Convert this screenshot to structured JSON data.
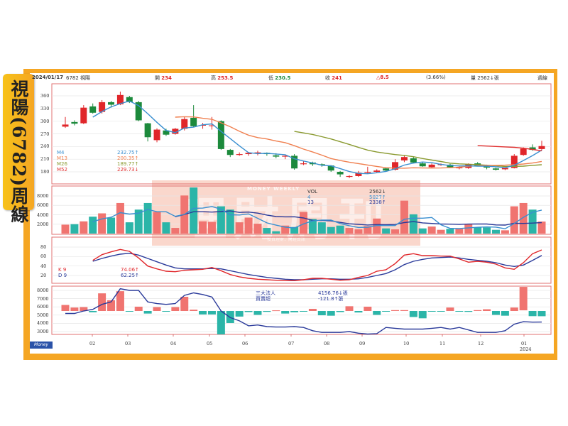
{
  "side_label": "視陽(6782)周線",
  "header": {
    "date": "2024/01/17",
    "stock": "6782 視陽",
    "open_label": "開",
    "open": "234",
    "high_label": "高",
    "high": "253.5",
    "low_label": "低",
    "low": "230.5",
    "close_label": "收",
    "close": "241",
    "change": "△8.5",
    "change_pct": "(3.66%)",
    "volume_label": "量",
    "volume": "2562↓張",
    "period": "週線"
  },
  "watermark": {
    "title": "理財周刊",
    "en": "MONEY WEEKLY",
    "sub": "投資理財．財經資訊"
  },
  "logo": "Money",
  "colors": {
    "up": "#e0262a",
    "down": "#1c8a3c",
    "vol_up": "#f07470",
    "vol_down": "#2bb5a8",
    "m4": "#3a8fd0",
    "m13": "#f08050",
    "m26": "#8a9a30",
    "m52": "#e03030",
    "k": "#e0262a",
    "d": "#2a3a9a",
    "holdings": "#2a3a9a"
  },
  "chart_data": [
    {
      "type": "candlestick",
      "panel": "price",
      "yticks": [
        360,
        330,
        300,
        270,
        240,
        210,
        180
      ],
      "ylim": [
        150,
        380
      ],
      "ohlc": [
        [
          287,
          310,
          284,
          292
        ],
        [
          298,
          302,
          290,
          294
        ],
        [
          295,
          338,
          293,
          332
        ],
        [
          335,
          342,
          318,
          320
        ],
        [
          322,
          350,
          318,
          345
        ],
        [
          345,
          348,
          332,
          339
        ],
        [
          340,
          370,
          338,
          362
        ],
        [
          357,
          360,
          343,
          345
        ],
        [
          345,
          348,
          300,
          302
        ],
        [
          295,
          296,
          252,
          262
        ],
        [
          255,
          283,
          250,
          280
        ],
        [
          278,
          282,
          265,
          268
        ],
        [
          270,
          284,
          268,
          282
        ],
        [
          282,
          310,
          278,
          305
        ],
        [
          308,
          338,
          286,
          288
        ],
        [
          290,
          296,
          282,
          291
        ],
        [
          290,
          310,
          280,
          290
        ],
        [
          300,
          302,
          232,
          234
        ],
        [
          232,
          234,
          215,
          220
        ],
        [
          220,
          226,
          218,
          222
        ],
        [
          222,
          227,
          218,
          225
        ],
        [
          224,
          230,
          219,
          226
        ],
        [
          225,
          226,
          218,
          222
        ],
        [
          219,
          224,
          212,
          216
        ],
        [
          216,
          220,
          210,
          218
        ],
        [
          218,
          222,
          185,
          188
        ],
        [
          198,
          206,
          196,
          200
        ],
        [
          202,
          204,
          194,
          198
        ],
        [
          198,
          200,
          192,
          196
        ],
        [
          195,
          196,
          180,
          183
        ],
        [
          180,
          182,
          168,
          174
        ],
        [
          168,
          172,
          165,
          170
        ],
        [
          170,
          182,
          168,
          178
        ],
        [
          178,
          192,
          175,
          180
        ],
        [
          180,
          186,
          178,
          183
        ],
        [
          188,
          190,
          180,
          183
        ],
        [
          185,
          210,
          183,
          203
        ],
        [
          207,
          218,
          203,
          215
        ],
        [
          212,
          215,
          200,
          202
        ],
        [
          200,
          202,
          192,
          193
        ],
        [
          191,
          200,
          189,
          197
        ],
        [
          196,
          200,
          194,
          198
        ],
        [
          197,
          199,
          189,
          191
        ],
        [
          189,
          193,
          186,
          190
        ],
        [
          189,
          200,
          187,
          198
        ],
        [
          200,
          203,
          193,
          195
        ],
        [
          193,
          197,
          186,
          190
        ],
        [
          188,
          190,
          183,
          185
        ],
        [
          186,
          191,
          184,
          189
        ],
        [
          189,
          222,
          188,
          218
        ],
        [
          220,
          238,
          218,
          235
        ],
        [
          238,
          245,
          230,
          232
        ],
        [
          234,
          253.5,
          230.5,
          241
        ]
      ],
      "m52_tail": [
        242,
        241,
        240,
        239,
        238,
        236,
        233,
        229.73
      ],
      "legend": [
        {
          "name": "M4",
          "value": "232.75↑"
        },
        {
          "name": "M13",
          "value": "200.35↑"
        },
        {
          "name": "M26",
          "value": "189.77↑"
        },
        {
          "name": "M52",
          "value": "229.73↓"
        }
      ]
    },
    {
      "type": "bar",
      "panel": "volume",
      "yticks": [
        8000,
        6000,
        4000,
        2000
      ],
      "ylim": [
        0,
        10000
      ],
      "values": [
        1900,
        2000,
        2600,
        3600,
        4300,
        3400,
        6500,
        2400,
        5100,
        6500,
        4600,
        2400,
        1200,
        8100,
        9800,
        2600,
        2500,
        5800,
        5100,
        2400,
        3400,
        2100,
        1200,
        500,
        1700,
        1400,
        4600,
        3100,
        2400,
        1400,
        1700,
        1200,
        900,
        1600,
        3200,
        1100,
        900,
        7000,
        4100,
        1100,
        1500,
        800,
        1000,
        1000,
        2100,
        1300,
        1300,
        800,
        700,
        5800,
        6500,
        5100,
        2562
      ],
      "legend": [
        {
          "name": "VOL",
          "value": "2562↓"
        },
        {
          "name": "4",
          "value": "5027↑"
        },
        {
          "name": "13",
          "value": "2338↑"
        }
      ]
    },
    {
      "type": "line",
      "panel": "kd",
      "yticks": [
        80,
        60,
        40,
        20
      ],
      "ylim": [
        0,
        100
      ],
      "k": [
        null,
        null,
        null,
        52,
        64,
        70,
        75,
        71,
        57,
        40,
        34,
        29,
        28,
        31,
        32,
        33,
        37,
        30,
        22,
        17,
        14,
        12,
        11,
        10,
        9,
        9,
        11,
        14,
        14,
        12,
        10,
        11,
        16,
        20,
        29,
        32,
        45,
        63,
        66,
        62,
        62,
        61,
        61,
        55,
        48,
        50,
        48,
        44,
        36,
        33,
        47,
        66,
        74.06
      ],
      "d": [
        null,
        null,
        null,
        50,
        56,
        61,
        65,
        67,
        63,
        56,
        49,
        42,
        36,
        34,
        34,
        34,
        35,
        34,
        30,
        26,
        22,
        19,
        16,
        14,
        12,
        11,
        11,
        12,
        13,
        13,
        12,
        12,
        13,
        16,
        20,
        24,
        32,
        43,
        50,
        54,
        57,
        58,
        59,
        57,
        54,
        52,
        50,
        47,
        42,
        39,
        42,
        52,
        62.25
      ],
      "legend": [
        {
          "name": "K 9",
          "value": "74.06↑"
        },
        {
          "name": "D 9",
          "value": "62.25↑"
        }
      ]
    },
    {
      "type": "bar+line",
      "panel": "institutional",
      "yticks": [
        8000,
        7000,
        6000,
        5000,
        4000,
        3000
      ],
      "ylim": [
        2500,
        8300
      ],
      "holdings": [
        5200,
        5200,
        5500,
        5700,
        6300,
        6600,
        8200,
        8000,
        8000,
        6600,
        6400,
        6300,
        6400,
        7400,
        7700,
        7500,
        7200,
        5500,
        4700,
        4300,
        3700,
        3800,
        3600,
        3550,
        3550,
        3600,
        3500,
        3100,
        2900,
        2900,
        2900,
        3000,
        2800,
        2700,
        2750,
        3500,
        3400,
        3300,
        3300,
        3300,
        3400,
        3500,
        3300,
        3500,
        3200,
        2900,
        2900,
        2900,
        3100,
        3900,
        4200,
        4150,
        4156.76
      ],
      "net": [
        140,
        80,
        90,
        -30,
        410,
        250,
        460,
        -5,
        100,
        -60,
        90,
        -15,
        90,
        330,
        30,
        -80,
        -80,
        -580,
        -280,
        -130,
        -25,
        -90,
        -20,
        15,
        -60,
        -30,
        -15,
        50,
        -100,
        -110,
        -25,
        110,
        -35,
        100,
        -90,
        -10,
        20,
        20,
        -140,
        -170,
        -5,
        -5,
        80,
        -10,
        -20,
        20,
        40,
        -90,
        -110,
        80,
        560,
        -120,
        -121.8
      ],
      "legend": [
        {
          "name": "三大法人",
          "value": "4156.76↓張"
        },
        {
          "name": "買賣超",
          "value": "-121.8↑張"
        }
      ]
    }
  ],
  "xaxis": {
    "months": [
      "02",
      "03",
      "04",
      "05",
      "06",
      "07",
      "08",
      "09",
      "10",
      "11",
      "12",
      "01"
    ],
    "year": "2024"
  }
}
